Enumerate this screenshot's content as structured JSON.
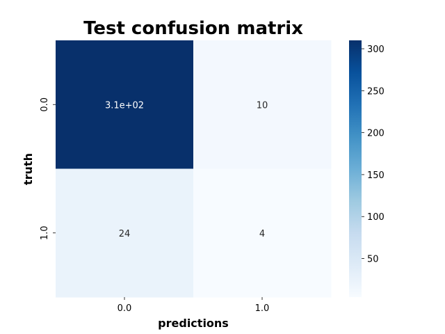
{
  "chart_data": {
    "type": "heatmap",
    "title": "Test confusion matrix",
    "xlabel": "predictions",
    "ylabel": "truth",
    "x_categories": [
      "0.0",
      "1.0"
    ],
    "y_categories": [
      "0.0",
      "1.0"
    ],
    "values": [
      [
        310,
        10
      ],
      [
        24,
        4
      ]
    ],
    "annotations": [
      [
        "3.1e+02",
        "10"
      ],
      [
        "24",
        "4"
      ]
    ],
    "colormap": "Blues",
    "colorbar": {
      "range": [
        4,
        310
      ],
      "ticks": [
        50,
        100,
        150,
        200,
        250,
        300
      ],
      "tick_labels": [
        "50",
        "100",
        "150",
        "200",
        "250",
        "300"
      ]
    },
    "grid": false,
    "legend": "colorbar-right"
  }
}
